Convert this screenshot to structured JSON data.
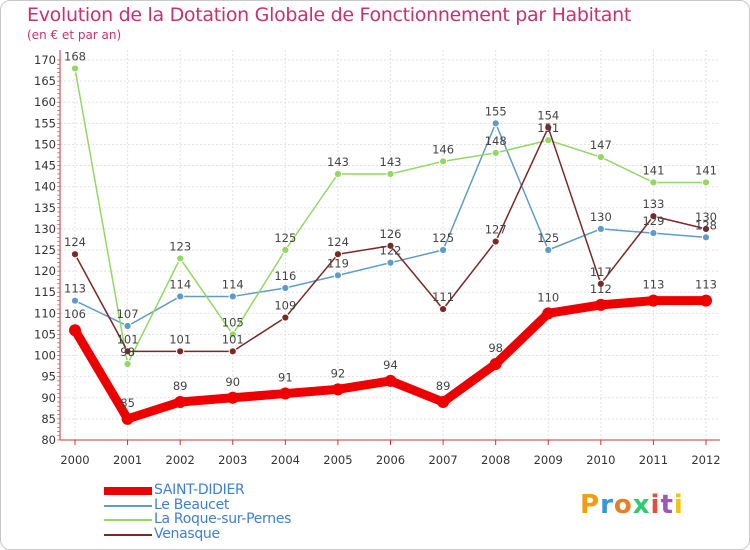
{
  "title": "Evolution de la Dotation Globale de Fonctionnement par Habitant",
  "subtitle": "(en € et par an)",
  "logo": {
    "text": "Proxiti",
    "colors": [
      "#f39c12",
      "#3498db",
      "#e67e22",
      "#2ecc71",
      "#e74c3c",
      "#9b59b6",
      "#f1c40f"
    ]
  },
  "chart_data": {
    "type": "line",
    "title": "Evolution de la Dotation Globale de Fonctionnement par Habitant",
    "subtitle": "(en € et par an)",
    "x": [
      "2000",
      "2001",
      "2002",
      "2003",
      "2004",
      "2005",
      "2006",
      "2007",
      "2008",
      "2009",
      "2010",
      "2011",
      "2012"
    ],
    "ylim": [
      80,
      170
    ],
    "yticks": [
      80,
      85,
      90,
      95,
      100,
      105,
      110,
      115,
      120,
      125,
      130,
      135,
      140,
      145,
      150,
      155,
      160,
      165,
      170
    ],
    "grid": true,
    "legend_position": "bottom-left",
    "series": [
      {
        "name": "Le Beaucet",
        "color": "#5f9bc9",
        "values": [
          113,
          107,
          114,
          114,
          116,
          119,
          122,
          125,
          155,
          125,
          130,
          129,
          128
        ]
      },
      {
        "name": "La Roque-sur-Pernes",
        "color": "#93d862",
        "values": [
          168,
          98,
          123,
          105,
          125,
          143,
          143,
          146,
          148,
          151,
          147,
          141,
          141
        ]
      },
      {
        "name": "Venasque",
        "color": "#7a2828",
        "values": [
          124,
          101,
          101,
          101,
          109,
          124,
          126,
          111,
          127,
          154,
          117,
          133,
          130
        ]
      },
      {
        "name": "SAINT-DIDIER",
        "color": "#ee0000",
        "values": [
          106,
          85,
          89,
          90,
          91,
          92,
          94,
          89,
          98,
          110,
          112,
          113,
          113
        ]
      }
    ],
    "legend": [
      "SAINT-DIDIER",
      "Le Beaucet",
      "La Roque-sur-Pernes",
      "Venasque"
    ]
  }
}
